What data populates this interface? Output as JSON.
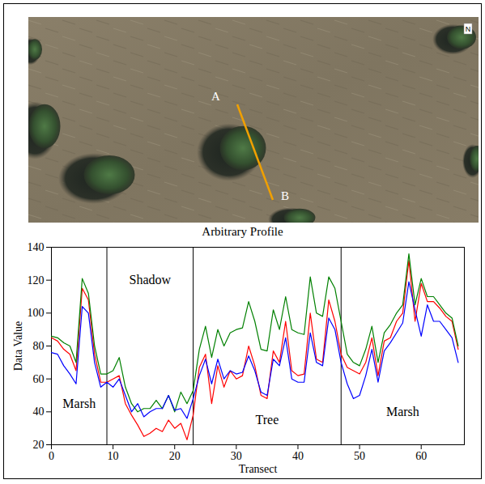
{
  "image": {
    "point_labels": [
      "A",
      "B"
    ],
    "north": "N"
  },
  "chart_data": {
    "type": "line",
    "title": "Arbitrary Profile",
    "xlabel": "Transect",
    "ylabel": "Data Value",
    "x": [
      0,
      1,
      2,
      3,
      4,
      5,
      6,
      7,
      8,
      9,
      10,
      11,
      12,
      13,
      14,
      15,
      16,
      17,
      18,
      19,
      20,
      21,
      22,
      23,
      24,
      25,
      26,
      27,
      28,
      29,
      30,
      31,
      32,
      33,
      34,
      35,
      36,
      37,
      38,
      39,
      40,
      41,
      42,
      43,
      44,
      45,
      46,
      47,
      48,
      49,
      50,
      51,
      52,
      53,
      54,
      55,
      56,
      57,
      58,
      59,
      60,
      61,
      62,
      63,
      64,
      65,
      66
    ],
    "series": [
      {
        "color": "red",
        "values": [
          85,
          83,
          78,
          75,
          65,
          115,
          108,
          75,
          58,
          58,
          60,
          62,
          45,
          38,
          32,
          25,
          27,
          30,
          28,
          35,
          30,
          33,
          23,
          38,
          67,
          75,
          45,
          68,
          55,
          65,
          60,
          62,
          80,
          68,
          50,
          48,
          77,
          70,
          95,
          65,
          62,
          63,
          100,
          72,
          70,
          108,
          95,
          75,
          67,
          65,
          63,
          70,
          85,
          62,
          83,
          85,
          95,
          100,
          132,
          95,
          118,
          107,
          107,
          103,
          98,
          95,
          78
        ]
      },
      {
        "color": "green",
        "values": [
          86,
          85,
          82,
          80,
          70,
          121,
          112,
          80,
          63,
          63,
          65,
          73,
          55,
          45,
          40,
          42,
          42,
          47,
          42,
          50,
          40,
          52,
          45,
          53,
          78,
          92,
          73,
          90,
          80,
          88,
          90,
          91,
          107,
          95,
          78,
          77,
          102,
          90,
          110,
          90,
          88,
          87,
          122,
          100,
          98,
          122,
          115,
          95,
          75,
          70,
          68,
          78,
          92,
          70,
          88,
          93,
          100,
          105,
          136,
          105,
          121,
          110,
          110,
          105,
          100,
          97,
          80
        ]
      },
      {
        "color": "blue",
        "values": [
          76,
          75,
          68,
          63,
          57,
          104,
          100,
          70,
          55,
          58,
          55,
          60,
          50,
          40,
          45,
          37,
          40,
          42,
          42,
          50,
          41,
          42,
          36,
          48,
          62,
          72,
          57,
          72,
          60,
          65,
          63,
          64,
          74,
          65,
          52,
          50,
          72,
          68,
          85,
          60,
          58,
          58,
          88,
          70,
          68,
          97,
          90,
          70,
          57,
          48,
          50,
          62,
          78,
          58,
          77,
          82,
          88,
          94,
          119,
          102,
          86,
          105,
          95,
          95,
          90,
          85,
          70
        ]
      }
    ],
    "regions": [
      {
        "label": "Marsh",
        "start": 0,
        "end": 9,
        "label_y": 45
      },
      {
        "label": "Shadow",
        "start": 9,
        "end": 23,
        "label_y": 120
      },
      {
        "label": "Tree",
        "start": 23,
        "end": 47,
        "label_y": 35
      },
      {
        "label": "Marsh",
        "start": 47,
        "end": 67,
        "label_y": 40
      }
    ],
    "xlim": [
      0,
      67
    ],
    "xticks": [
      0,
      10,
      20,
      30,
      40,
      50,
      60
    ],
    "ylim": [
      20,
      140
    ],
    "yticks": [
      20,
      40,
      60,
      80,
      100,
      120,
      140
    ],
    "grid": false
  }
}
